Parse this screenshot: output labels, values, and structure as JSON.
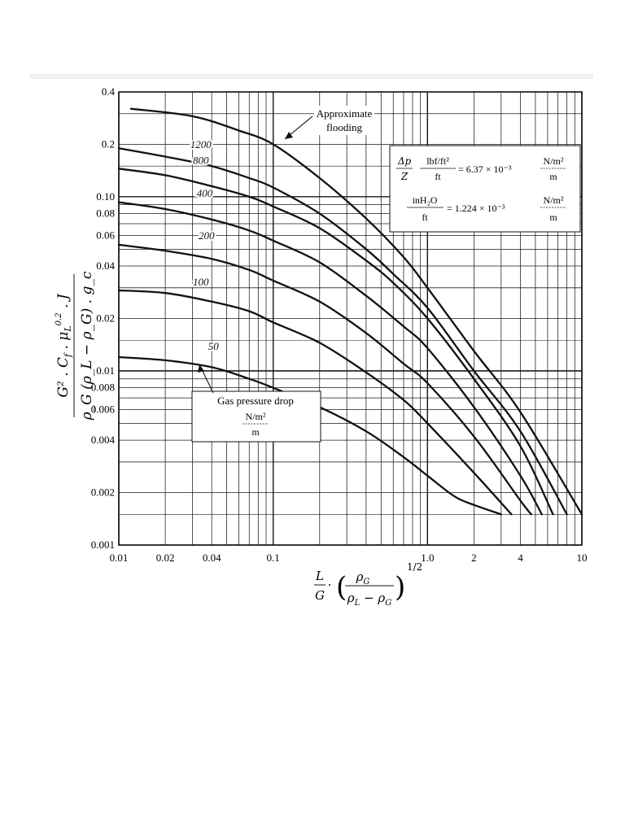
{
  "chart_data": {
    "type": "line",
    "x_scale": "log",
    "y_scale": "log",
    "xlim": [
      0.01,
      10
    ],
    "ylim": [
      0.001,
      0.4
    ],
    "grid": true,
    "x_ticks": [
      {
        "value": 0.01,
        "label": "0.01"
      },
      {
        "value": 0.02,
        "label": "0.02"
      },
      {
        "value": 0.04,
        "label": "0.04"
      },
      {
        "value": 0.1,
        "label": "0.1"
      },
      {
        "value": 1.0,
        "label": "1.0"
      },
      {
        "value": 2,
        "label": "2"
      },
      {
        "value": 4,
        "label": "4"
      },
      {
        "value": 10,
        "label": "10"
      }
    ],
    "y_ticks": [
      {
        "value": 0.4,
        "label": "0.4"
      },
      {
        "value": 0.2,
        "label": "0.2"
      },
      {
        "value": 0.1,
        "label": "0.10"
      },
      {
        "value": 0.08,
        "label": "0.08"
      },
      {
        "value": 0.06,
        "label": "0.06"
      },
      {
        "value": 0.04,
        "label": "0.04"
      },
      {
        "value": 0.02,
        "label": "0.02"
      },
      {
        "value": 0.01,
        "label": "0.01"
      },
      {
        "value": 0.008,
        "label": "0.008"
      },
      {
        "value": 0.006,
        "label": "0.006"
      },
      {
        "value": 0.004,
        "label": "0.004"
      },
      {
        "value": 0.002,
        "label": "0.002"
      },
      {
        "value": 0.001,
        "label": "0.001"
      }
    ],
    "series": [
      {
        "name": "Approximate flooding",
        "x": [
          0.012,
          0.03,
          0.06,
          0.1,
          0.2,
          0.4,
          0.7,
          1.0,
          2.0,
          4.0,
          10.0
        ],
        "y": [
          0.32,
          0.29,
          0.24,
          0.2,
          0.128,
          0.075,
          0.045,
          0.03,
          0.013,
          0.0058,
          0.0015
        ]
      },
      {
        "name": "1200",
        "x": [
          0.01,
          0.02,
          0.04,
          0.07,
          0.1,
          0.2,
          0.4,
          0.6,
          1.0,
          2.0,
          4.0,
          8.0
        ],
        "y": [
          0.19,
          0.17,
          0.15,
          0.128,
          0.113,
          0.08,
          0.05,
          0.036,
          0.023,
          0.01,
          0.0045,
          0.0015
        ]
      },
      {
        "name": "800",
        "x": [
          0.01,
          0.02,
          0.04,
          0.07,
          0.1,
          0.2,
          0.4,
          0.6,
          1.0,
          2.0,
          4.0,
          6.5
        ],
        "y": [
          0.145,
          0.133,
          0.115,
          0.1,
          0.088,
          0.066,
          0.043,
          0.032,
          0.02,
          0.009,
          0.0037,
          0.0015
        ]
      },
      {
        "name": "400",
        "x": [
          0.01,
          0.02,
          0.04,
          0.07,
          0.1,
          0.2,
          0.4,
          0.7,
          1.0,
          2.0,
          4.0,
          5.5
        ],
        "y": [
          0.093,
          0.085,
          0.074,
          0.064,
          0.056,
          0.042,
          0.027,
          0.018,
          0.0135,
          0.0062,
          0.0025,
          0.0015
        ]
      },
      {
        "name": "200",
        "x": [
          0.01,
          0.02,
          0.04,
          0.07,
          0.1,
          0.2,
          0.4,
          0.7,
          1.0,
          2.0,
          4.0,
          4.7
        ],
        "y": [
          0.053,
          0.049,
          0.044,
          0.038,
          0.033,
          0.025,
          0.0165,
          0.011,
          0.0085,
          0.0042,
          0.0018,
          0.0015
        ]
      },
      {
        "name": "100",
        "x": [
          0.01,
          0.02,
          0.04,
          0.07,
          0.1,
          0.2,
          0.4,
          0.7,
          1.0,
          2.0,
          3.5
        ],
        "y": [
          0.029,
          0.028,
          0.025,
          0.022,
          0.019,
          0.0145,
          0.0098,
          0.0068,
          0.005,
          0.0026,
          0.0015
        ]
      },
      {
        "name": "50",
        "x": [
          0.01,
          0.02,
          0.04,
          0.07,
          0.1,
          0.2,
          0.4,
          0.7,
          1.0,
          1.5,
          2.0,
          3.0
        ],
        "y": [
          0.012,
          0.0115,
          0.0105,
          0.009,
          0.008,
          0.0062,
          0.0045,
          0.0032,
          0.0025,
          0.0019,
          0.0017,
          0.0015
        ]
      }
    ],
    "curve_labels": [
      {
        "series": "1200",
        "text": "1200"
      },
      {
        "series": "800",
        "text": "800"
      },
      {
        "series": "400",
        "text": "400"
      },
      {
        "series": "200",
        "text": "200"
      },
      {
        "series": "100",
        "text": "100"
      },
      {
        "series": "50",
        "text": "50"
      }
    ],
    "annotations": {
      "flooding_line1": "Approximate",
      "flooding_line2": "flooding",
      "gas_title": "Gas pressure drop",
      "gas_unit_num": "N/m²",
      "gas_unit_den": "m",
      "conv1_lhs_num": "Δp",
      "conv1_lhs_den": "Z",
      "conv1_unit_num": "lbf/ft²",
      "conv1_unit_den": "ft",
      "conv1_eq": "= 6.37 × 10⁻³",
      "conv1_rhs_num": "N/m²",
      "conv1_rhs_den": "m",
      "conv2_unit_num": "inH₂O",
      "conv2_unit_den": "ft",
      "conv2_eq": "= 1.224 × 10⁻³",
      "conv2_rhs_num": "N/m²",
      "conv2_rhs_den": "m"
    },
    "ylabel": {
      "numerator": "G² . C_f . μ_L^0.2 . J",
      "numerator_main": "G² . C",
      "numerator_sub_f": "f",
      "numerator_mid": " . μ",
      "numerator_sub_L": "L",
      "numerator_sup": "0.2",
      "numerator_end": " . J",
      "denominator": "ρ_G (ρ_L − ρ_G) . g_c"
    },
    "xlabel": {
      "full": "(L/G) . (ρ_G / (ρ_L − ρ_G))^(1/2)",
      "L": "L",
      "G": "G",
      "dot": "·",
      "inner_num": "ρ",
      "inner_num_sub": "G",
      "inner_den": "ρ",
      "inner_den_sub1": "L",
      "inner_den_minus": " − ρ",
      "inner_den_sub2": "G",
      "exponent": "1/2"
    }
  }
}
